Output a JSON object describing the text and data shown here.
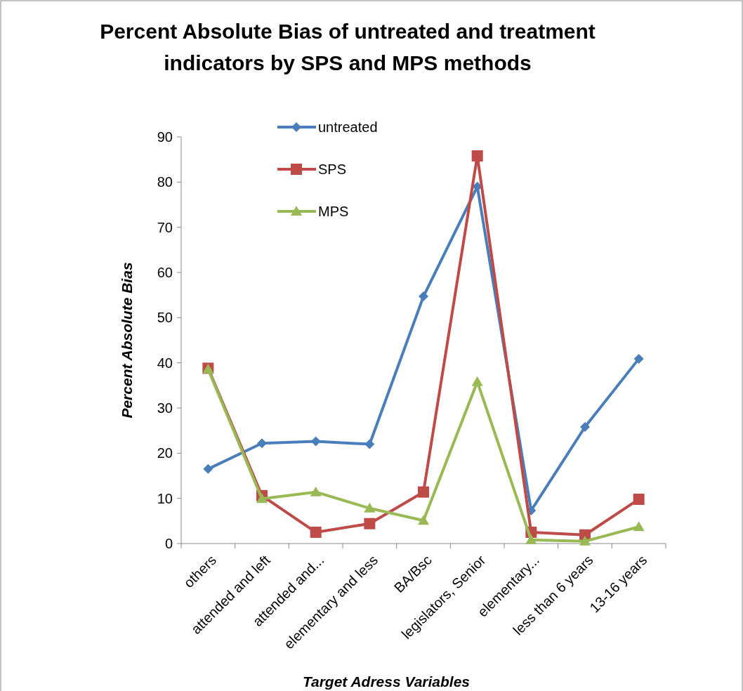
{
  "chart_data": {
    "type": "line",
    "title": "Percent Absolute Bias of untreated and treatment indicators by SPS and MPS methods",
    "xlabel": "Target Adress Variables",
    "ylabel": "Percent Absolute Bias",
    "categories": [
      "others",
      "attended and left",
      "attended and...",
      "elementary and less",
      "BA/Bsc",
      "legislators, Senior",
      "elementary...",
      "less than 6 years",
      "13-16 years"
    ],
    "series": [
      {
        "name": "untreated",
        "color": "#4a7ebb",
        "marker": "diamond",
        "values": [
          16.5,
          22.2,
          22.6,
          22.0,
          54.7,
          79.0,
          7.3,
          25.8,
          40.9
        ]
      },
      {
        "name": "SPS",
        "color": "#be4b48",
        "marker": "square",
        "values": [
          38.8,
          10.6,
          2.5,
          4.4,
          11.4,
          85.8,
          2.5,
          1.9,
          9.8
        ]
      },
      {
        "name": "MPS",
        "color": "#98b954",
        "marker": "triangle",
        "values": [
          38.6,
          9.9,
          11.4,
          7.8,
          5.1,
          35.8,
          0.8,
          0.5,
          3.7
        ]
      }
    ],
    "ylim": [
      0,
      90
    ],
    "yticks": [
      0,
      10,
      20,
      30,
      40,
      50,
      60,
      70,
      80,
      90
    ],
    "grid": false,
    "legend": "top"
  }
}
